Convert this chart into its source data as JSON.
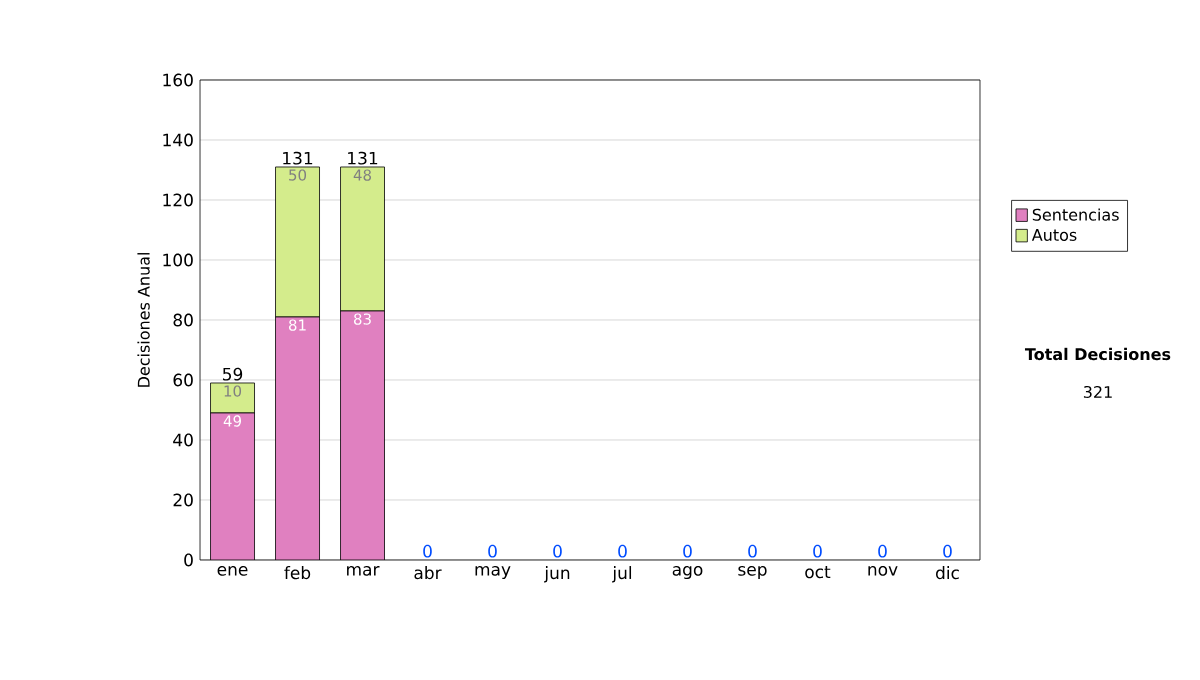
{
  "chart_data": {
    "type": "bar",
    "stacked": true,
    "ylabel": "Decisiones Anual",
    "categories": [
      "ene",
      "feb",
      "mar",
      "abr",
      "may",
      "jun",
      "jul",
      "ago",
      "sep",
      "oct",
      "nov",
      "dic"
    ],
    "series": [
      {
        "name": "Sentencias",
        "color": "#e080c0",
        "values": [
          49,
          81,
          83,
          0,
          0,
          0,
          0,
          0,
          0,
          0,
          0,
          0
        ],
        "value_labels": [
          "49",
          "81",
          "83",
          null,
          null,
          null,
          null,
          null,
          null,
          null,
          null,
          null
        ]
      },
      {
        "name": "Autos",
        "color": "#d4ec8c",
        "values": [
          10,
          50,
          48,
          0,
          0,
          0,
          0,
          0,
          0,
          0,
          0,
          0
        ],
        "value_labels": [
          "10",
          "50",
          "48",
          null,
          null,
          null,
          null,
          null,
          null,
          null,
          null,
          null
        ]
      }
    ],
    "totals": [
      "59",
      "131",
      "131",
      "0",
      "0",
      "0",
      "0",
      "0",
      "0",
      "0",
      "0",
      "0"
    ],
    "ylim": [
      0,
      160
    ],
    "yticks": [
      0,
      20,
      40,
      60,
      80,
      100,
      120,
      140,
      160
    ],
    "grid": "y",
    "legend": "right",
    "annotations": [
      "Total Decisiones",
      "321"
    ]
  }
}
